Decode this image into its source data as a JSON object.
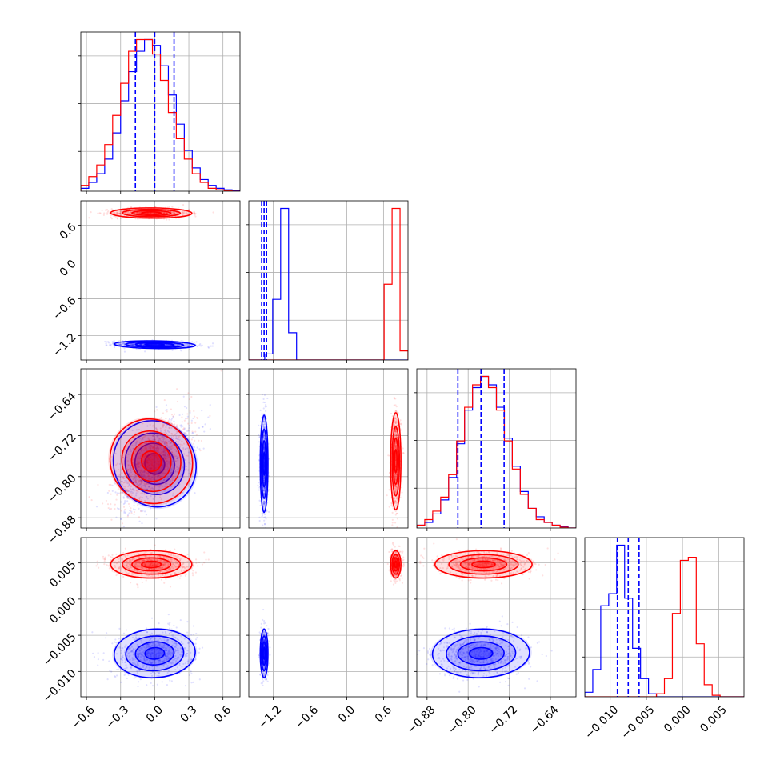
{
  "chart_data": {
    "type": "corner",
    "n_params": 4,
    "colors": {
      "series_a": "#0000ff",
      "series_b": "#ff0000"
    },
    "grid": true,
    "quantile_lines": {
      "color": "#0000ff",
      "style": "dashed"
    },
    "params": [
      {
        "range": [
          -0.65,
          0.75
        ],
        "ticks": [
          -0.6,
          -0.3,
          0.0,
          0.3,
          0.6
        ],
        "tick_labels": [
          "−0.6",
          "−0.3",
          "0.0",
          "0.3",
          "0.6"
        ]
      },
      {
        "range": [
          -1.6,
          1.0
        ],
        "ticks": [
          -1.2,
          -0.6,
          0.0,
          0.6
        ],
        "tick_labels": [
          "−1.2",
          "−0.6",
          "0.0",
          "0.6"
        ]
      },
      {
        "range": [
          -0.9,
          -0.59
        ],
        "ticks": [
          -0.88,
          -0.8,
          -0.72,
          -0.64
        ],
        "tick_labels": [
          "−0.88",
          "−0.80",
          "−0.72",
          "−0.64"
        ]
      },
      {
        "range": [
          -0.0135,
          0.0085
        ],
        "ticks": [
          -0.01,
          -0.005,
          0.0,
          0.005
        ],
        "tick_labels": [
          "−0.010",
          "−0.005",
          "0.000",
          "0.005"
        ]
      }
    ],
    "series": [
      {
        "color": "blue",
        "means": [
          0.0,
          -1.35,
          -0.775,
          -0.0075
        ],
        "sds": [
          0.17,
          0.03,
          0.045,
          0.0016
        ],
        "corr01": -0.2,
        "corr02": 0.55,
        "corr03": 0.1,
        "corr12": 0.0,
        "corr13": 0.0,
        "corr23": 0.05,
        "quantiles": [
          [
            -0.17,
            0.0,
            0.17
          ],
          [
            -1.39,
            -1.35,
            -1.31
          ],
          [
            -0.82,
            -0.775,
            -0.73
          ],
          [
            -0.009,
            -0.0075,
            -0.006
          ]
        ]
      },
      {
        "color": "red",
        "means": [
          -0.03,
          0.8,
          -0.77,
          0.0048
        ],
        "sds": [
          0.17,
          0.04,
          0.045,
          0.0009
        ],
        "corr01": -0.05,
        "corr02": 0.6,
        "corr03": 0.0,
        "corr12": 0.0,
        "corr13": 0.0,
        "corr23": 0.0
      }
    ],
    "histograms": [
      {
        "bins": 20,
        "blue": [
          1,
          3,
          6,
          11,
          20,
          31,
          41,
          48,
          52,
          50,
          43,
          33,
          23,
          14,
          8,
          4,
          2,
          1,
          0.5,
          0.2
        ],
        "red": [
          2,
          5,
          9,
          16,
          26,
          37,
          48,
          52,
          52,
          47,
          38,
          27,
          18,
          11,
          6,
          3,
          1,
          0.5,
          0.2,
          0
        ]
      },
      {
        "bins": 20,
        "blue": [
          0,
          0,
          4,
          40,
          100,
          18,
          0,
          0,
          0,
          0,
          0,
          0,
          0,
          0,
          0,
          0,
          0,
          0,
          0,
          0
        ],
        "red": [
          0,
          0,
          0,
          0,
          0,
          0,
          0,
          0,
          0,
          0,
          0,
          0,
          0,
          0,
          0,
          0,
          0,
          50,
          100,
          6
        ]
      },
      {
        "bins": 20,
        "blue": [
          1,
          2,
          5,
          10,
          18,
          30,
          42,
          50,
          54,
          51,
          43,
          32,
          22,
          13,
          7,
          4,
          2,
          1,
          0.4,
          0
        ],
        "red": [
          1,
          3,
          6,
          11,
          19,
          31,
          43,
          51,
          54,
          50,
          42,
          31,
          21,
          12,
          7,
          3,
          2,
          1,
          0.3,
          0
        ]
      },
      {
        "bins": 20,
        "blue": [
          3,
          18,
          60,
          68,
          100,
          65,
          32,
          12,
          2,
          0,
          0,
          0,
          0,
          0,
          0,
          0,
          0,
          0,
          0,
          0
        ],
        "red": [
          0,
          0,
          0,
          0,
          0,
          0,
          0,
          0,
          0,
          2,
          12,
          55,
          90,
          92,
          35,
          8,
          1,
          0,
          0,
          0
        ]
      }
    ]
  }
}
